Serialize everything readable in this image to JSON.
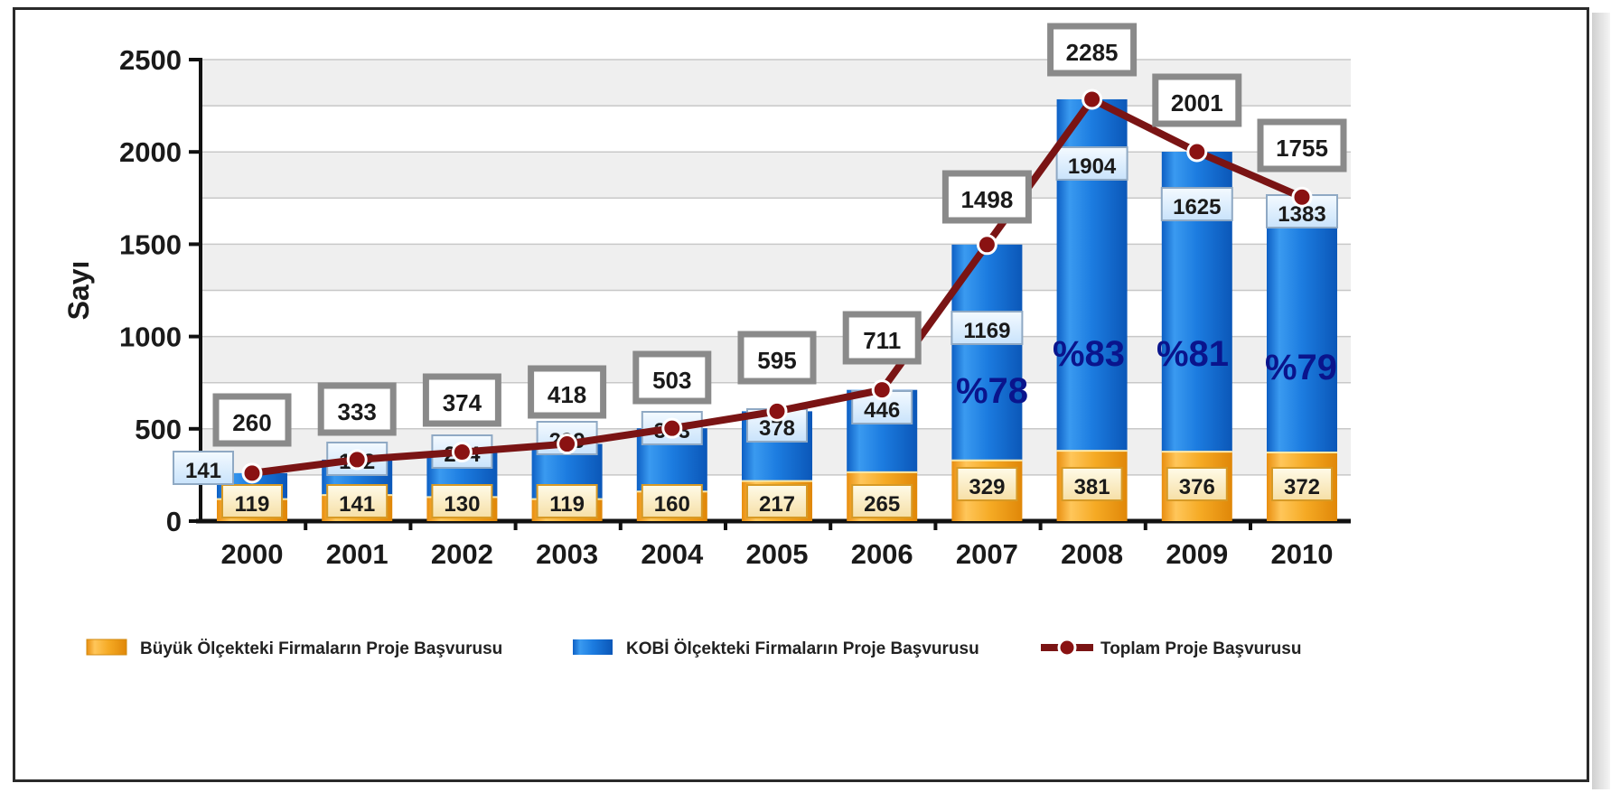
{
  "chart_data": {
    "type": "bar",
    "ylabel": "Sayı",
    "ylim": [
      0,
      2500
    ],
    "yticks": [
      "0",
      "500",
      "1000",
      "1500",
      "2000",
      "2500"
    ],
    "categories": [
      "2000",
      "2001",
      "2002",
      "2003",
      "2004",
      "2005",
      "2006",
      "2007",
      "2008",
      "2009",
      "2010"
    ],
    "series": [
      {
        "name": "Büyük Ölçekteki Firmaların Proje Başvurusu",
        "kind": "bar",
        "stack": "base",
        "color": "#f2a81c",
        "values": [
          119,
          141,
          130,
          119,
          160,
          217,
          265,
          329,
          381,
          376,
          372
        ]
      },
      {
        "name": "KOBİ Ölçekteki Firmaların Proje Başvurusu",
        "kind": "bar",
        "stack": "top",
        "color": "#1a73d9",
        "values": [
          141,
          192,
          244,
          299,
          343,
          378,
          446,
          1169,
          1904,
          1625,
          1383
        ]
      },
      {
        "name": "Toplam Proje Başvurusu",
        "kind": "line",
        "color": "#7a1414",
        "values": [
          260,
          333,
          374,
          418,
          503,
          595,
          711,
          1498,
          2285,
          2001,
          1755
        ]
      }
    ],
    "percent_annotations": [
      {
        "category": "2007",
        "text": "%78"
      },
      {
        "category": "2008",
        "text": "%83"
      },
      {
        "category": "2009",
        "text": "%81"
      },
      {
        "category": "2010",
        "text": "%79"
      }
    ],
    "grid": true,
    "legend_position": "bottom"
  }
}
